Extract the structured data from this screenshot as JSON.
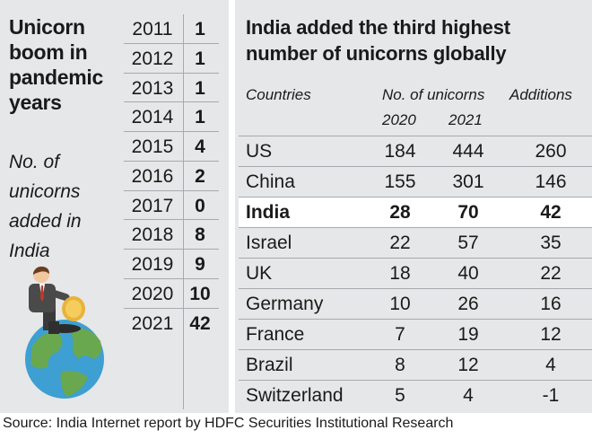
{
  "left": {
    "title_lines": [
      "Unicorn",
      "boom in",
      "pandemic",
      "years"
    ],
    "subtitle_lines": [
      "No. of",
      "unicorns",
      "added in",
      "India"
    ]
  },
  "right": {
    "title_lines": [
      "India added the third highest",
      "number of unicorns globally"
    ],
    "headers": {
      "countries": "Countries",
      "unicorns": "No. of unicorns",
      "year_a": "2020",
      "year_b": "2021",
      "additions": "Additions"
    }
  },
  "source": "Source: India Internet report by HDFC Securities Institutional Research",
  "chart_data": [
    {
      "type": "table",
      "title": "Unicorn boom in pandemic years",
      "subtitle": "No. of unicorns added in India",
      "rows": [
        {
          "year": "2011",
          "count": "1"
        },
        {
          "year": "2012",
          "count": "1"
        },
        {
          "year": "2013",
          "count": "1"
        },
        {
          "year": "2014",
          "count": "1"
        },
        {
          "year": "2015",
          "count": "4"
        },
        {
          "year": "2016",
          "count": "2"
        },
        {
          "year": "2017",
          "count": "0"
        },
        {
          "year": "2018",
          "count": "8"
        },
        {
          "year": "2019",
          "count": "9"
        },
        {
          "year": "2020",
          "count": "10"
        },
        {
          "year": "2021",
          "count": "42"
        }
      ]
    },
    {
      "type": "table",
      "title": "India added the third highest number of unicorns globally",
      "highlight": "India",
      "rows": [
        {
          "country": "US",
          "y2020": "184",
          "y2021": "444",
          "additions": "260"
        },
        {
          "country": "China",
          "y2020": "155",
          "y2021": "301",
          "additions": "146"
        },
        {
          "country": "India",
          "y2020": "28",
          "y2021": "70",
          "additions": "42"
        },
        {
          "country": "Israel",
          "y2020": "22",
          "y2021": "57",
          "additions": "35"
        },
        {
          "country": "UK",
          "y2020": "18",
          "y2021": "40",
          "additions": "22"
        },
        {
          "country": "Germany",
          "y2020": "10",
          "y2021": "26",
          "additions": "16"
        },
        {
          "country": "France",
          "y2020": "7",
          "y2021": "19",
          "additions": "12"
        },
        {
          "country": "Brazil",
          "y2020": "8",
          "y2021": "12",
          "additions": "4"
        },
        {
          "country": "Switzerland",
          "y2020": "5",
          "y2021": "4",
          "additions": "-1"
        }
      ]
    }
  ],
  "colors": {
    "panel": "#e6e7e8",
    "rule": "#a7a9ac",
    "highlight_row": "#ffffff",
    "globe_ocean": "#3d9fd2",
    "globe_land": "#6aa84f",
    "coin": "#e8b33a",
    "suit": "#4a4a4a",
    "tie": "#c0392b"
  },
  "illustration": "businessman-inserting-coin-into-globe"
}
